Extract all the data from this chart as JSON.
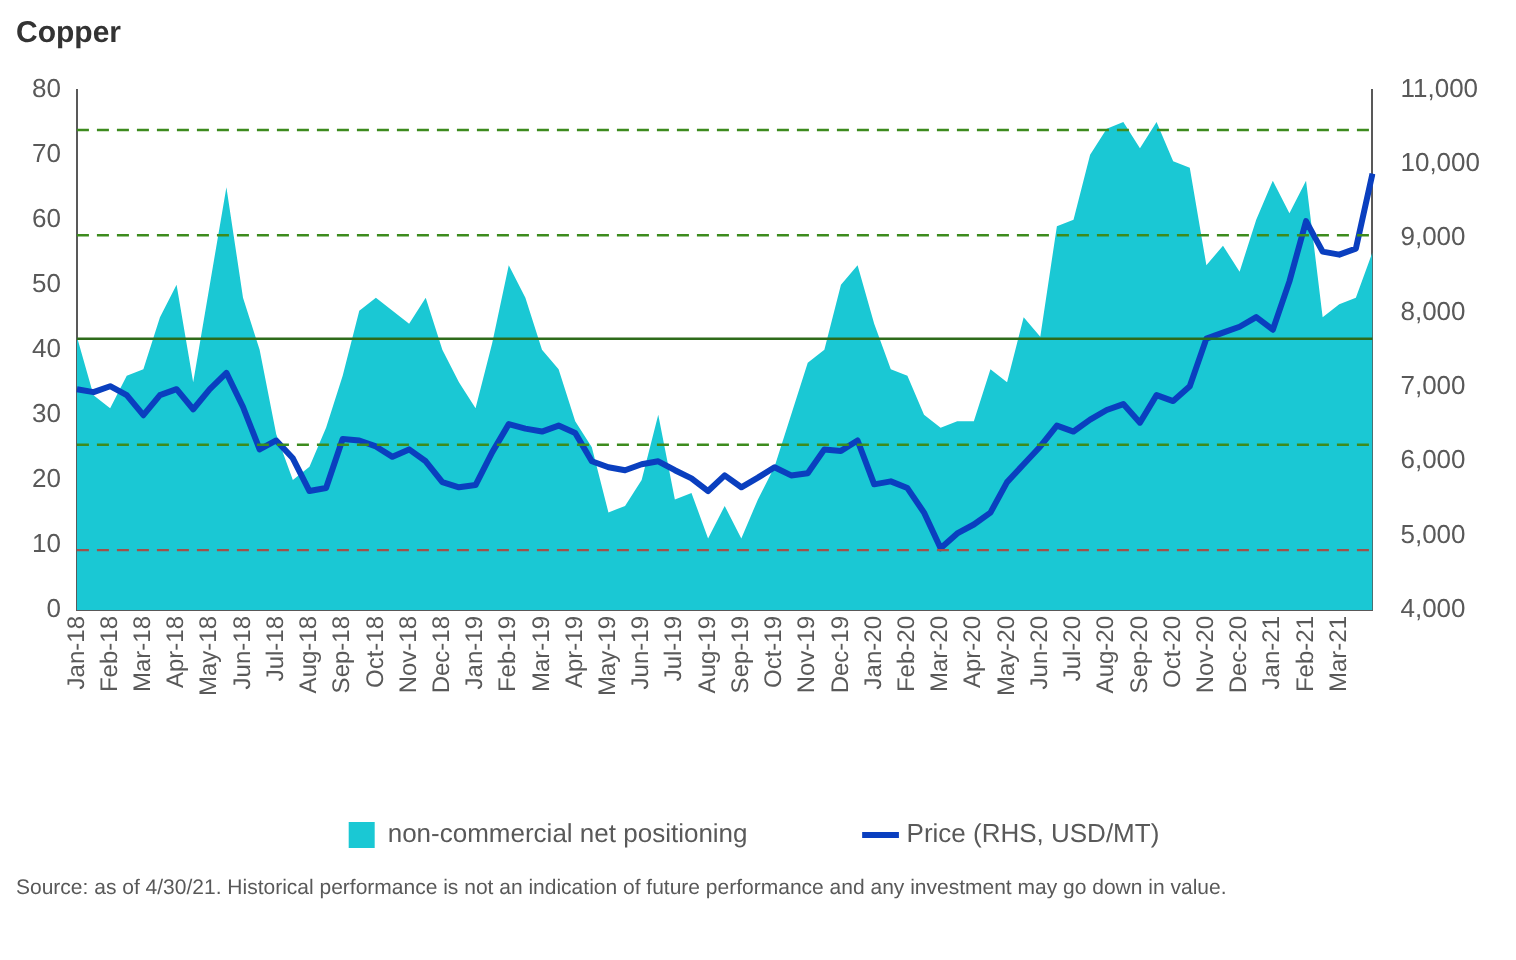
{
  "chart_data": {
    "type": "line",
    "title": "Copper",
    "annotations": [
      "Source: as of 4/30/21. Historical performance is not an indication of future performance and any investment may go down in value."
    ],
    "categories": [
      "Jan-18",
      null,
      "Feb-18",
      null,
      "Mar-18",
      null,
      "Apr-18",
      null,
      "May-18",
      null,
      "Jun-18",
      null,
      "Jul-18",
      null,
      "Aug-18",
      null,
      "Sep-18",
      null,
      "Oct-18",
      null,
      "Nov-18",
      null,
      "Dec-18",
      null,
      "Jan-19",
      null,
      "Feb-19",
      null,
      "Mar-19",
      null,
      "Apr-19",
      null,
      "May-19",
      null,
      "Jun-19",
      null,
      "Jul-19",
      null,
      "Aug-19",
      null,
      "Sep-19",
      null,
      "Oct-19",
      null,
      "Nov-19",
      null,
      "Dec-19",
      null,
      "Jan-20",
      null,
      "Feb-20",
      null,
      "Mar-20",
      null,
      "Apr-20",
      null,
      "May-20",
      null,
      "Jun-20",
      null,
      "Jul-20",
      null,
      "Aug-20",
      null,
      "Sep-20",
      null,
      "Oct-20",
      null,
      "Nov-20",
      null,
      "Dec-20",
      null,
      "Jan-21",
      null,
      "Feb-21",
      null,
      "Mar-21",
      null,
      null
    ],
    "series": [
      {
        "name": "non-commercial net positioning",
        "type": "area",
        "color": "#1ac8d4",
        "values": [
          42,
          33,
          31,
          36,
          37,
          45,
          50,
          35,
          50,
          65,
          48,
          40,
          27,
          20,
          22,
          28,
          36,
          46,
          48,
          46,
          44,
          48,
          40,
          35,
          31,
          41,
          53,
          48,
          40,
          37,
          29,
          25,
          15,
          16,
          20,
          30,
          17,
          18,
          11,
          16,
          11,
          17,
          22,
          30,
          38,
          40,
          50,
          53,
          44,
          37,
          36,
          30,
          28,
          29,
          29,
          37,
          35,
          45,
          42,
          59,
          60,
          70,
          74,
          75,
          71,
          75,
          69,
          68,
          53,
          56,
          52,
          60,
          66,
          61,
          66,
          45,
          47,
          48,
          55
        ]
      },
      {
        "name": "Price (RHS, USD/MT)",
        "type": "line",
        "axis": "y2",
        "color": "#0a3fbf",
        "values": [
          6970,
          6930,
          7010,
          6890,
          6620,
          6890,
          6970,
          6700,
          6970,
          7190,
          6730,
          6160,
          6280,
          6040,
          5600,
          5640,
          6300,
          6280,
          6200,
          6060,
          6160,
          6000,
          5720,
          5650,
          5680,
          6120,
          6500,
          6440,
          6400,
          6480,
          6380,
          6000,
          5920,
          5880,
          5960,
          6000,
          5880,
          5770,
          5600,
          5810,
          5650,
          5780,
          5920,
          5810,
          5840,
          6160,
          6140,
          6280,
          5690,
          5730,
          5640,
          5310,
          4830,
          5030,
          5150,
          5310,
          5720,
          5960,
          6200,
          6480,
          6400,
          6560,
          6690,
          6770,
          6520,
          6890,
          6810,
          7010,
          7650,
          7730,
          7810,
          7940,
          7770,
          8420,
          9230,
          8820,
          8780,
          8860,
          9870
        ]
      }
    ],
    "ylim": [
      0,
      80
    ],
    "yticks": [
      0,
      10,
      20,
      30,
      40,
      50,
      60,
      70,
      80
    ],
    "y2lim": [
      4000,
      11000
    ],
    "y2ticks": [
      {
        "value": 4000,
        "label": "4,000"
      },
      {
        "value": 5000,
        "label": "5,000"
      },
      {
        "value": 6000,
        "label": "6,000"
      },
      {
        "value": 7000,
        "label": "7,000"
      },
      {
        "value": 8000,
        "label": "8,000"
      },
      {
        "value": 9000,
        "label": "9,000"
      },
      {
        "value": 10000,
        "label": "10,000"
      },
      {
        "value": 11000,
        "label": "11,000"
      }
    ],
    "ref_lines": [
      {
        "axis": "y",
        "value": 73.8,
        "color": "#3d8b1e",
        "line_style": "dashed"
      },
      {
        "axis": "y",
        "value": 57.6,
        "color": "#3d8b1e",
        "line_style": "dashed"
      },
      {
        "axis": "y",
        "value": 41.7,
        "color": "#2e6b1a",
        "line_style": "solid"
      },
      {
        "axis": "y",
        "value": 25.4,
        "color": "#3d8b1e",
        "line_style": "dashed"
      },
      {
        "axis": "y",
        "value": 9.2,
        "color": "#a0524a",
        "line_style": "dashed"
      }
    ],
    "grid": false,
    "legend": "bottom",
    "marker": "none"
  }
}
